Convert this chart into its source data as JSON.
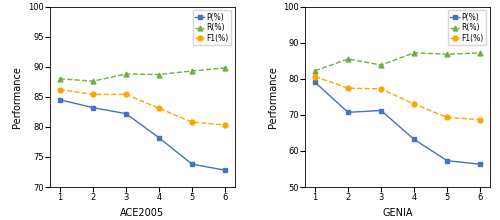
{
  "ace_x": [
    1,
    2,
    3,
    4,
    5,
    6
  ],
  "ace_P": [
    84.5,
    83.2,
    82.2,
    78.2,
    73.8,
    72.8
  ],
  "ace_R": [
    88.0,
    87.6,
    88.8,
    88.7,
    89.3,
    89.8
  ],
  "ace_F1": [
    86.2,
    85.4,
    85.4,
    83.1,
    80.8,
    80.3
  ],
  "genia_x": [
    1,
    2,
    3,
    4,
    5,
    6
  ],
  "genia_P": [
    79.0,
    70.7,
    71.2,
    63.2,
    57.3,
    56.3
  ],
  "genia_R": [
    82.2,
    85.5,
    83.8,
    87.2,
    86.8,
    87.2
  ],
  "genia_F1": [
    80.6,
    77.4,
    77.2,
    73.0,
    69.3,
    68.7
  ],
  "ace_ylim": [
    70,
    100
  ],
  "genia_ylim": [
    50,
    100
  ],
  "ace_yticks": [
    70,
    75,
    80,
    85,
    90,
    95,
    100
  ],
  "genia_yticks": [
    50,
    60,
    70,
    80,
    90,
    100
  ],
  "color_P": "#4472C4",
  "color_R": "#70AD47",
  "color_F1": "#FFA500",
  "xlabel_ace": "ACE2005",
  "xlabel_genia": "GENIA",
  "ylabel": "Performance",
  "legend_labels": [
    "P(%)",
    "R(%)",
    "F1(%)"
  ]
}
